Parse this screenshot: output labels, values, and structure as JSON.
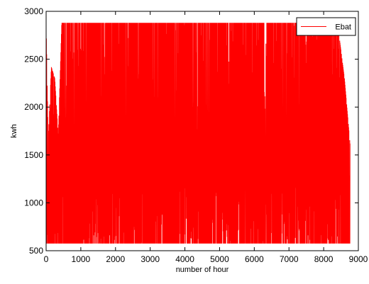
{
  "chart_data": {
    "type": "line",
    "title": "",
    "xlabel": "number of hour",
    "ylabel": "kwh",
    "xlim": [
      0,
      9000
    ],
    "ylim": [
      500,
      3000
    ],
    "xticks": [
      0,
      1000,
      2000,
      3000,
      4000,
      5000,
      6000,
      7000,
      8000,
      9000
    ],
    "yticks": [
      500,
      1000,
      1500,
      2000,
      2500,
      3000
    ],
    "grid": false,
    "legend": {
      "position": "top-right"
    },
    "series": [
      {
        "name": "Ebat",
        "color": "#ff0000",
        "x_start": 0,
        "x_end": 8760,
        "min": 575,
        "max": 2880,
        "description_envelope": [
          [
            0,
            575,
            2880
          ],
          [
            60,
            575,
            1650
          ],
          [
            150,
            575,
            2420
          ],
          [
            250,
            575,
            2300
          ],
          [
            350,
            575,
            1700
          ],
          [
            450,
            575,
            2880
          ],
          [
            900,
            575,
            2880
          ],
          [
            2000,
            575,
            2880
          ],
          [
            3000,
            575,
            2880
          ],
          [
            4000,
            575,
            2880
          ],
          [
            5000,
            575,
            2880
          ],
          [
            6000,
            575,
            2880
          ],
          [
            7000,
            575,
            2880
          ],
          [
            7300,
            575,
            2880
          ],
          [
            7600,
            575,
            2880
          ],
          [
            8000,
            575,
            2880
          ],
          [
            8400,
            575,
            2880
          ],
          [
            8600,
            575,
            2300
          ],
          [
            8760,
            575,
            1620
          ]
        ]
      }
    ]
  }
}
